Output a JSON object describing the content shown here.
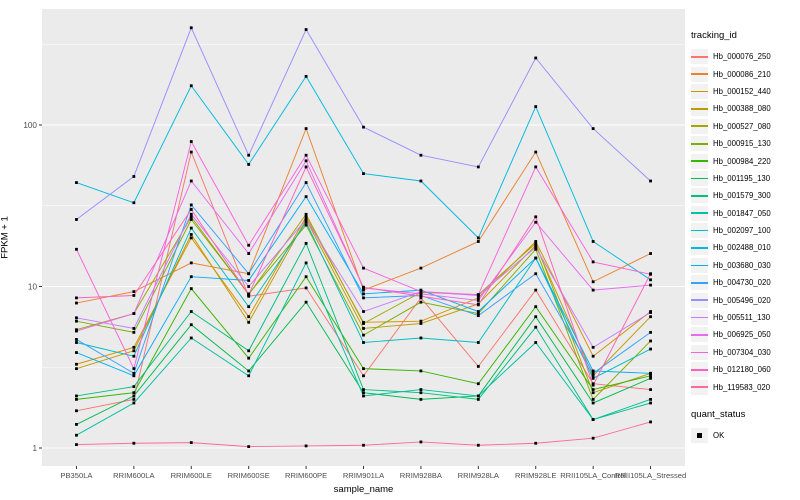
{
  "chart_data": {
    "type": "line",
    "title": "",
    "xlabel": "sample_name",
    "ylabel": "FPKM + 1",
    "yscale": "log10",
    "ylim": [
      1,
      520
    ],
    "yticks": [
      1,
      10,
      100
    ],
    "grid": "on",
    "legend_position": "right",
    "legend_title": "tracking_id",
    "quant_legend_title": "quant_status",
    "quant_legend_items": [
      "OK"
    ],
    "point_shape": "black-square",
    "panel_bg": "#EBEBEB",
    "grid_color": "#FFFFFF",
    "tick_label_color": "#4D4D4D",
    "categories": [
      "PB350LA",
      "RRIM600LA",
      "RRIM600LE",
      "RRIM600SE",
      "RRIM600PE",
      "RRIM901LA",
      "RRIM928BA",
      "RRIM928LA",
      "RRIM928LE",
      "RRII105LA_Control",
      "RRII105LA_Stressed"
    ],
    "series": [
      {
        "name": "Hb_000076_250",
        "color": "#F8766D",
        "values": [
          1.7,
          2.0,
          68,
          8.7,
          9.8,
          2.8,
          8.5,
          3.2,
          9.5,
          2.5,
          2.3
        ]
      },
      {
        "name": "Hb_000086_210",
        "color": "#EA8331",
        "values": [
          7.9,
          9.3,
          14,
          12,
          95,
          9.5,
          13,
          19,
          68,
          10.7,
          16
        ]
      },
      {
        "name": "Hb_000152_440",
        "color": "#D89000",
        "values": [
          3.3,
          4.2,
          20,
          6.5,
          27,
          6.0,
          6.1,
          8.5,
          19,
          3.7,
          7.0
        ]
      },
      {
        "name": "Hb_000388_080",
        "color": "#C09B00",
        "values": [
          3.1,
          4.0,
          21,
          6.0,
          26,
          5.5,
          5.9,
          7.8,
          18,
          2.8,
          6.5
        ]
      },
      {
        "name": "Hb_000527_080",
        "color": "#A3A500",
        "values": [
          5.4,
          6.8,
          27,
          8.9,
          28,
          5.9,
          9.2,
          8.9,
          18.5,
          2.2,
          2.9
        ]
      },
      {
        "name": "Hb_000915_130",
        "color": "#7CAE00",
        "values": [
          6.1,
          5.2,
          26,
          9.0,
          24,
          5.0,
          8.0,
          6.8,
          17,
          2.0,
          4.6
        ]
      },
      {
        "name": "Hb_000984_220",
        "color": "#39B600",
        "values": [
          2.0,
          2.2,
          9.7,
          3.6,
          11.5,
          3.1,
          3.0,
          2.5,
          7.5,
          2.3,
          2.8
        ]
      },
      {
        "name": "Hb_001195_130",
        "color": "#00BB4E",
        "values": [
          1.4,
          2.1,
          5.8,
          3.0,
          8.0,
          2.2,
          2.0,
          2.1,
          6.5,
          1.9,
          2.7
        ]
      },
      {
        "name": "Hb_001579_300",
        "color": "#00BF7D",
        "values": [
          2.1,
          2.4,
          7.0,
          4.0,
          18.5,
          2.3,
          2.2,
          2.0,
          5.6,
          1.5,
          1.9
        ]
      },
      {
        "name": "Hb_001847_050",
        "color": "#00C1A3",
        "values": [
          1.2,
          1.9,
          4.8,
          2.8,
          14,
          2.1,
          2.3,
          2.1,
          4.5,
          1.5,
          2.0
        ]
      },
      {
        "name": "Hb_002097_100",
        "color": "#00BFC4",
        "values": [
          4.5,
          3.7,
          23,
          7.5,
          25,
          4.5,
          4.8,
          4.5,
          15,
          2.7,
          4.1
        ]
      },
      {
        "name": "Hb_002488_010",
        "color": "#00BAE0",
        "values": [
          44,
          33,
          175,
          57,
          200,
          50,
          45,
          20,
          130,
          19,
          11
        ]
      },
      {
        "name": "Hb_003680_030",
        "color": "#00B0F6",
        "values": [
          3.9,
          2.8,
          11.5,
          10.9,
          36,
          9.0,
          9.5,
          7.0,
          15,
          3.0,
          2.9
        ]
      },
      {
        "name": "Hb_004730_020",
        "color": "#35A2FF",
        "values": [
          4.7,
          2.9,
          32,
          12,
          44,
          8.5,
          8.8,
          6.6,
          12,
          2.9,
          5.2
        ]
      },
      {
        "name": "Hb_005496_020",
        "color": "#9590FF",
        "values": [
          26,
          48,
          400,
          65,
          390,
          97,
          65,
          55,
          260,
          95,
          45
        ]
      },
      {
        "name": "Hb_005511_130",
        "color": "#C77CFF",
        "values": [
          6.4,
          5.5,
          28,
          10,
          26,
          7.0,
          9.3,
          8.8,
          17.5,
          4.2,
          6.9
        ]
      },
      {
        "name": "Hb_006925_050",
        "color": "#E76BF3",
        "values": [
          5.3,
          6.8,
          45,
          16,
          60,
          9.8,
          9.0,
          8.2,
          25,
          9.5,
          10.2
        ]
      },
      {
        "name": "Hb_007304_030",
        "color": "#FA62DB",
        "values": [
          17,
          3.1,
          79,
          18,
          65,
          13,
          9.3,
          8.9,
          55,
          14.2,
          11.9
        ]
      },
      {
        "name": "Hb_012180_060",
        "color": "#FF62BC",
        "values": [
          8.5,
          8.8,
          30,
          8.9,
          55,
          9.9,
          8.7,
          7.7,
          27,
          2.45,
          12
        ]
      },
      {
        "name": "Hb_119583_020",
        "color": "#FF6A98",
        "values": [
          1.05,
          1.07,
          1.08,
          1.02,
          1.03,
          1.04,
          1.09,
          1.04,
          1.07,
          1.15,
          1.45
        ]
      }
    ]
  }
}
